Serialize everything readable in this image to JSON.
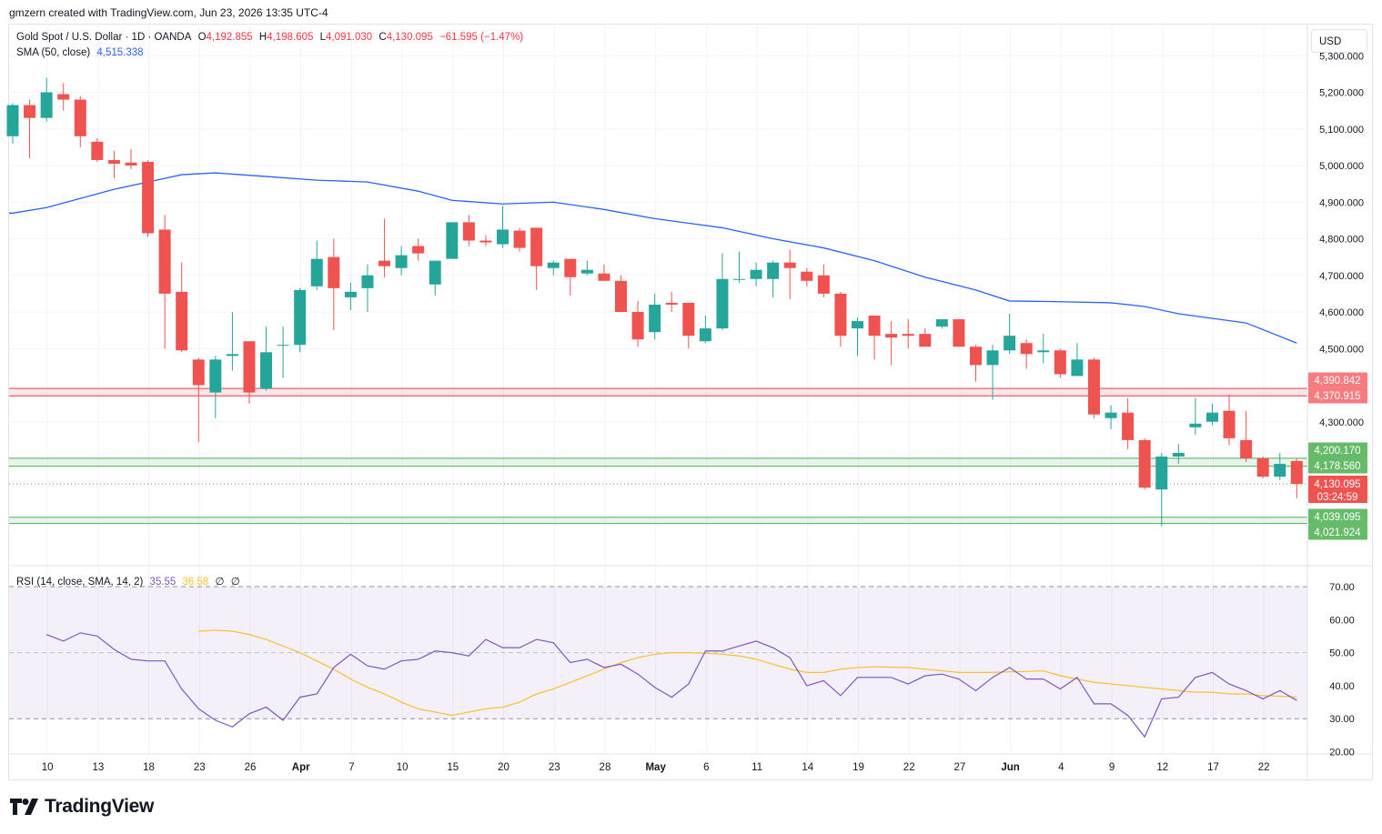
{
  "header": {
    "attribution": "gmzern created with TradingView.com, Jun 23, 2026 13:35 UTC-4"
  },
  "legend": {
    "symbol": "Gold Spot / U.S. Dollar · 1D · OANDA",
    "open_label": "O",
    "open": "4,192.855",
    "high_label": "H",
    "high": "4,198.605",
    "low_label": "L",
    "low": "4,091.030",
    "close_label": "C",
    "close": "4,130.095",
    "change": "−61.595 (−1.47%)",
    "sma_label": "SMA (50, close)",
    "sma_value": "4,515.338"
  },
  "rsi_legend": {
    "label": "RSI (14, close, SMA, 14, 2)",
    "rsi": "35.55",
    "rsi_sma": "36.58",
    "extra1": "∅",
    "extra2": "∅"
  },
  "currency": "USD",
  "brand": "TradingView",
  "colors": {
    "up": "#26a69a",
    "down": "#ef5350",
    "sma": "#2962ff",
    "rsi": "#7e57c2",
    "rsi_sma": "#fbc02d",
    "resistance": "#f23645",
    "support": "#4caf50"
  },
  "chart_data": [
    {
      "type": "candlestick",
      "title": "Gold Spot / U.S. Dollar · 1D · OANDA",
      "y_axis_ticks": [
        "5,300.000",
        "5,200.000",
        "5,100.000",
        "5,000.000",
        "4,900.000",
        "4,800.000",
        "4,700.000",
        "4,600.000",
        "4,500.000",
        "4,300.000"
      ],
      "x_axis_ticks": [
        "10",
        "13",
        "18",
        "23",
        "26",
        "Apr",
        "7",
        "10",
        "15",
        "20",
        "23",
        "28",
        "May",
        "6",
        "11",
        "14",
        "19",
        "22",
        "27",
        "Jun",
        "4",
        "9",
        "12",
        "17",
        "22"
      ],
      "ylim": [
        3970,
        5320
      ],
      "candles": [
        [
          5080,
          5170,
          5060,
          5165
        ],
        [
          5165,
          5180,
          5020,
          5130
        ],
        [
          5130,
          5240,
          5120,
          5200
        ],
        [
          5195,
          5225,
          5150,
          5180
        ],
        [
          5180,
          5190,
          5050,
          5080
        ],
        [
          5065,
          5075,
          5010,
          5015
        ],
        [
          5015,
          5040,
          4965,
          5005
        ],
        [
          5008,
          5045,
          4990,
          5000
        ],
        [
          5010,
          5015,
          4805,
          4815
        ],
        [
          4825,
          4865,
          4500,
          4650
        ],
        [
          4655,
          4735,
          4490,
          4495
        ],
        [
          4470,
          4475,
          4245,
          4400
        ],
        [
          4380,
          4480,
          4310,
          4470
        ],
        [
          4480,
          4600,
          4440,
          4485
        ],
        [
          4520,
          4520,
          4350,
          4380
        ],
        [
          4390,
          4560,
          4385,
          4490
        ],
        [
          4510,
          4560,
          4420,
          4510
        ],
        [
          4510,
          4665,
          4490,
          4660
        ],
        [
          4670,
          4795,
          4660,
          4745
        ],
        [
          4750,
          4800,
          4550,
          4665
        ],
        [
          4640,
          4680,
          4605,
          4655
        ],
        [
          4665,
          4730,
          4600,
          4700
        ],
        [
          4740,
          4855,
          4695,
          4725
        ],
        [
          4720,
          4780,
          4700,
          4755
        ],
        [
          4780,
          4800,
          4740,
          4760
        ],
        [
          4675,
          4735,
          4645,
          4740
        ],
        [
          4745,
          4845,
          4745,
          4845
        ],
        [
          4845,
          4865,
          4780,
          4795
        ],
        [
          4795,
          4810,
          4780,
          4790
        ],
        [
          4785,
          4890,
          4775,
          4825
        ],
        [
          4822,
          4830,
          4765,
          4775
        ],
        [
          4830,
          4830,
          4660,
          4725
        ],
        [
          4720,
          4740,
          4700,
          4735
        ],
        [
          4745,
          4745,
          4645,
          4695
        ],
        [
          4705,
          4740,
          4700,
          4715
        ],
        [
          4705,
          4730,
          4695,
          4685
        ],
        [
          4685,
          4700,
          4600,
          4600
        ],
        [
          4600,
          4630,
          4505,
          4525
        ],
        [
          4545,
          4650,
          4525,
          4620
        ],
        [
          4625,
          4655,
          4600,
          4620
        ],
        [
          4625,
          4625,
          4500,
          4535
        ],
        [
          4520,
          4590,
          4515,
          4555
        ],
        [
          4555,
          4760,
          4550,
          4690
        ],
        [
          4690,
          4765,
          4680,
          4690
        ],
        [
          4690,
          4735,
          4670,
          4715
        ],
        [
          4690,
          4740,
          4640,
          4735
        ],
        [
          4735,
          4770,
          4635,
          4720
        ],
        [
          4710,
          4720,
          4670,
          4685
        ],
        [
          4700,
          4730,
          4640,
          4650
        ],
        [
          4650,
          4655,
          4505,
          4535
        ],
        [
          4555,
          4585,
          4480,
          4575
        ],
        [
          4590,
          4590,
          4470,
          4535
        ],
        [
          4540,
          4575,
          4455,
          4530
        ],
        [
          4540,
          4580,
          4500,
          4535
        ],
        [
          4540,
          4555,
          4505,
          4505
        ],
        [
          4560,
          4580,
          4555,
          4580
        ],
        [
          4580,
          4580,
          4505,
          4505
        ],
        [
          4505,
          4510,
          4410,
          4455
        ],
        [
          4455,
          4510,
          4360,
          4495
        ],
        [
          4495,
          4595,
          4485,
          4535
        ],
        [
          4515,
          4525,
          4445,
          4485
        ],
        [
          4490,
          4540,
          4460,
          4495
        ],
        [
          4495,
          4500,
          4420,
          4430
        ],
        [
          4425,
          4515,
          4425,
          4470
        ],
        [
          4470,
          4475,
          4310,
          4320
        ],
        [
          4310,
          4345,
          4280,
          4325
        ],
        [
          4325,
          4365,
          4225,
          4250
        ],
        [
          4250,
          4255,
          4115,
          4120
        ],
        [
          4115,
          4215,
          4015,
          4205
        ],
        [
          4205,
          4240,
          4185,
          4215
        ],
        [
          4285,
          4365,
          4265,
          4295
        ],
        [
          4300,
          4350,
          4290,
          4325
        ],
        [
          4330,
          4375,
          4235,
          4255
        ],
        [
          4250,
          4330,
          4190,
          4200
        ],
        [
          4200,
          4205,
          4145,
          4150
        ],
        [
          4150,
          4215,
          4140,
          4185
        ],
        [
          4192.855,
          4198.605,
          4091.03,
          4130.095
        ]
      ],
      "sma50": [
        [
          0,
          4870
        ],
        [
          2,
          4885
        ],
        [
          6,
          4935
        ],
        [
          9,
          4965
        ],
        [
          10,
          4975
        ],
        [
          12,
          4980
        ],
        [
          15,
          4970
        ],
        [
          18,
          4960
        ],
        [
          21,
          4955
        ],
        [
          24,
          4930
        ],
        [
          26,
          4905
        ],
        [
          29,
          4895
        ],
        [
          32,
          4900
        ],
        [
          35,
          4880
        ],
        [
          38,
          4855
        ],
        [
          42,
          4830
        ],
        [
          45,
          4800
        ],
        [
          48,
          4775
        ],
        [
          51,
          4740
        ],
        [
          54,
          4695
        ],
        [
          57,
          4660
        ],
        [
          59,
          4630
        ],
        [
          62,
          4628
        ],
        [
          65,
          4625
        ],
        [
          67,
          4615
        ],
        [
          69,
          4595
        ],
        [
          73,
          4570
        ],
        [
          76,
          4515
        ]
      ],
      "price_labels": [
        {
          "value": 4390.842,
          "text": "4,390.842",
          "kind": "resistance"
        },
        {
          "value": 4370.915,
          "text": "4,370.915",
          "kind": "resistance"
        },
        {
          "value": 4200.17,
          "text": "4,200.170",
          "kind": "support"
        },
        {
          "value": 4178.56,
          "text": "4,178.560",
          "kind": "support"
        },
        {
          "value": 4130.095,
          "text": "4,130.095",
          "kind": "current",
          "countdown": "03:24:59"
        },
        {
          "value": 4039.095,
          "text": "4,039.095",
          "kind": "support"
        },
        {
          "value": 4021.924,
          "text": "4,021.924",
          "kind": "support"
        }
      ],
      "zones": [
        {
          "from": 4370.915,
          "to": 4390.842,
          "kind": "resistance"
        },
        {
          "from": 4178.56,
          "to": 4200.17,
          "kind": "support"
        },
        {
          "from": 4021.924,
          "to": 4039.095,
          "kind": "support"
        }
      ]
    },
    {
      "type": "line",
      "title": "RSI (14, close, SMA, 14, 2)",
      "ylim": [
        18,
        72
      ],
      "y_axis_ticks": [
        "70.00",
        "60.00",
        "50.00",
        "40.00",
        "30.00",
        "20.00"
      ],
      "bands": {
        "upper": 70,
        "middle": 50,
        "lower": 30
      },
      "series": [
        {
          "name": "RSI",
          "values": [
            55.5,
            53.5,
            56,
            55,
            51,
            48,
            47.5,
            47.5,
            39,
            33,
            29.5,
            27.5,
            31.5,
            33.5,
            29.5,
            36.5,
            37.5,
            45.5,
            49.5,
            46,
            45,
            47.5,
            48,
            50.5,
            50,
            49,
            54,
            51.5,
            51.5,
            54,
            53,
            47,
            48,
            45.5,
            46.5,
            43.5,
            39.5,
            36.5,
            40.5,
            50.5,
            50.5,
            52,
            53.5,
            51.5,
            48.5,
            40,
            41.5,
            37,
            42.5,
            42.5,
            42.5,
            40.5,
            43,
            43.5,
            42,
            38.5,
            42.5,
            45.5,
            42,
            42,
            39,
            42.5,
            34.5,
            34.5,
            31,
            24.5,
            36,
            36.5,
            42.5,
            44,
            40.5,
            38.5,
            36,
            38.5,
            35.55
          ]
        },
        {
          "name": "RSI-based MA",
          "values": [
            56.5,
            56.8,
            56.5,
            55.5,
            54,
            52,
            50,
            47.5,
            45,
            42,
            39.5,
            37.5,
            35,
            33,
            32,
            31,
            32,
            33,
            33.5,
            35,
            37.5,
            39,
            41,
            43,
            45,
            47,
            48.5,
            49.5,
            50,
            50,
            49.8,
            49.5,
            49,
            48,
            46.5,
            45,
            44,
            44,
            45,
            45.5,
            45.7,
            45.6,
            45.5,
            45,
            44.5,
            44,
            44,
            44,
            44.2,
            44.3,
            44.5,
            43,
            42,
            41,
            40.5,
            40,
            39.5,
            39,
            38.5,
            38,
            38,
            37.5,
            37.5,
            37,
            36.8,
            36.58
          ]
        }
      ]
    }
  ]
}
